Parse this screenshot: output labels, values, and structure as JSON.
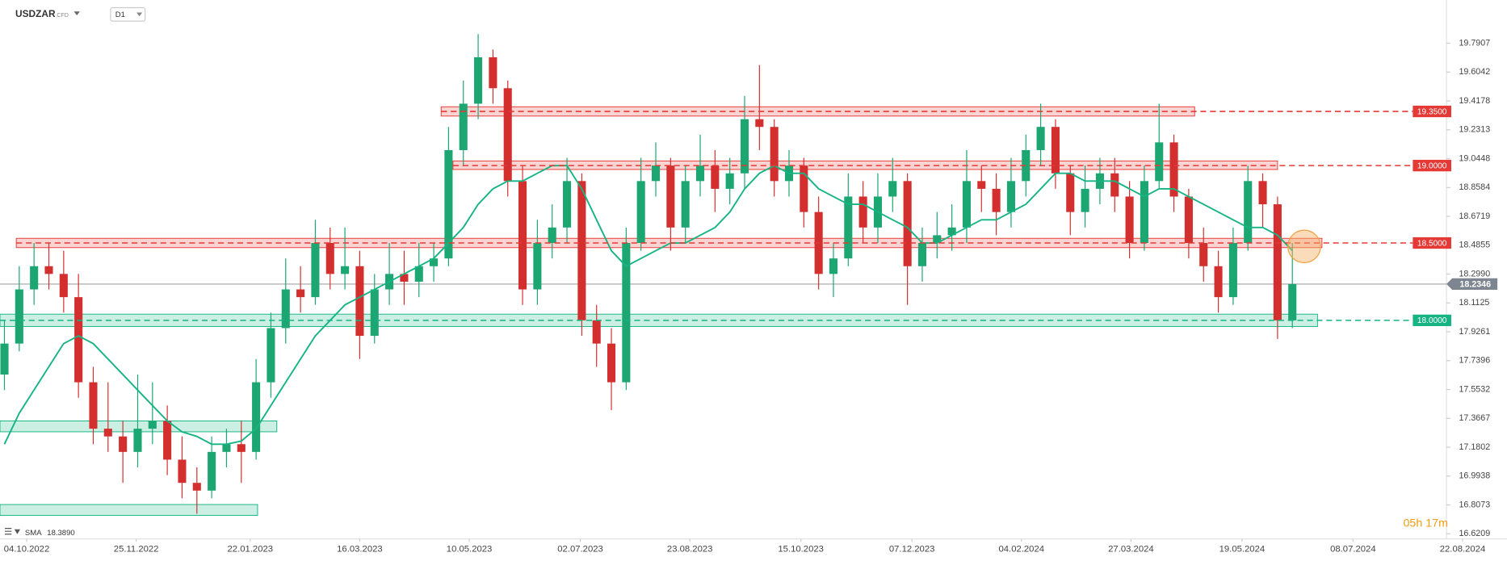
{
  "chart_data": {
    "type": "candlestick",
    "symbol": "USDZAR",
    "instrument": "CFD",
    "interval": "D1",
    "timer": "05h 17m",
    "up_color": "#1ba672",
    "down_color": "#d32f2f",
    "xlim": [
      -0.3,
      101.5
    ],
    "ylim": [
      16.6,
      20.07
    ],
    "xticks": [
      {
        "value": 1.5,
        "label": "04.10.2022"
      },
      {
        "value": 8.9,
        "label": "25.11.2022"
      },
      {
        "value": 16.6,
        "label": "22.01.2023"
      },
      {
        "value": 24.0,
        "label": "16.03.2023"
      },
      {
        "value": 31.4,
        "label": "10.05.2023"
      },
      {
        "value": 38.9,
        "label": "02.07.2023"
      },
      {
        "value": 46.3,
        "label": "23.08.2023"
      },
      {
        "value": 53.8,
        "label": "15.10.2023"
      },
      {
        "value": 61.3,
        "label": "07.12.2023"
      },
      {
        "value": 68.7,
        "label": "04.02.2024"
      },
      {
        "value": 76.1,
        "label": "27.03.2024"
      },
      {
        "value": 83.6,
        "label": "19.05.2024"
      },
      {
        "value": 91.1,
        "label": "08.07.2024"
      },
      {
        "value": 98.5,
        "label": "22.08.2024"
      }
    ],
    "yticks": [
      19.7907,
      19.6042,
      19.4178,
      19.2313,
      19.0448,
      18.8584,
      18.6719,
      18.4855,
      {
        "value": 18.299,
        "label": "18.2990"
      },
      18.1125,
      17.9261,
      17.7396,
      17.5532,
      17.3667,
      17.1802,
      16.9938,
      16.8073,
      16.6209
    ],
    "open": [
      17.65,
      17.85,
      18.2,
      18.35,
      18.3,
      18.15,
      17.6,
      17.3,
      17.25,
      17.15,
      17.3,
      17.35,
      17.1,
      16.95,
      16.9,
      17.15,
      17.2,
      17.15,
      17.6,
      17.95,
      18.2,
      18.15,
      18.5,
      18.3,
      18.35,
      17.9,
      18.2,
      18.3,
      18.25,
      18.35,
      18.4,
      19.1,
      19.4,
      19.7,
      19.5,
      18.9,
      18.2,
      18.5,
      18.6,
      18.9,
      18.0,
      17.85,
      17.6,
      18.5,
      18.9,
      19.0,
      18.6,
      18.9,
      19.0,
      18.85,
      18.95,
      19.3,
      19.25,
      18.9,
      19.0,
      18.7,
      18.3,
      18.4,
      18.8,
      18.6,
      18.8,
      18.9,
      18.35,
      18.5,
      18.55,
      18.6,
      18.9,
      18.85,
      18.7,
      18.9,
      19.1,
      19.25,
      18.95,
      18.7,
      18.85,
      18.95,
      18.8,
      18.5,
      18.9,
      19.15,
      18.8,
      18.5,
      18.35,
      18.15,
      18.5,
      18.9,
      18.75,
      18.0
    ],
    "high": [
      18.0,
      18.35,
      18.5,
      18.5,
      18.45,
      18.3,
      17.7,
      17.6,
      17.35,
      17.65,
      17.6,
      17.45,
      17.25,
      17.05,
      17.25,
      17.3,
      17.35,
      17.75,
      18.05,
      18.4,
      18.35,
      18.65,
      18.6,
      18.6,
      18.45,
      18.3,
      18.5,
      18.45,
      18.5,
      18.5,
      19.25,
      19.55,
      19.85,
      19.75,
      19.55,
      19.0,
      18.65,
      18.75,
      19.05,
      18.95,
      18.1,
      17.95,
      18.6,
      19.05,
      19.15,
      19.05,
      19.0,
      19.2,
      19.1,
      19.05,
      19.45,
      19.65,
      19.3,
      19.1,
      19.05,
      18.8,
      18.5,
      18.95,
      18.9,
      18.95,
      19.05,
      18.95,
      18.6,
      18.7,
      18.75,
      19.1,
      19.0,
      18.95,
      19.05,
      19.2,
      19.4,
      19.3,
      19.0,
      19.0,
      19.05,
      19.05,
      18.9,
      19.0,
      19.4,
      19.2,
      18.85,
      18.6,
      18.45,
      18.6,
      19.0,
      18.95,
      18.8,
      18.5
    ],
    "low": [
      17.55,
      17.8,
      18.1,
      18.2,
      18.05,
      17.5,
      17.2,
      17.15,
      16.95,
      17.05,
      17.2,
      17.0,
      16.85,
      16.75,
      16.85,
      17.05,
      16.95,
      17.1,
      17.5,
      17.85,
      18.05,
      18.1,
      18.2,
      18.2,
      17.75,
      17.85,
      18.1,
      18.1,
      18.15,
      18.25,
      18.35,
      19.0,
      19.3,
      19.4,
      18.8,
      18.1,
      18.1,
      18.4,
      18.5,
      17.9,
      17.7,
      17.42,
      17.55,
      18.45,
      18.8,
      18.45,
      18.5,
      18.8,
      18.7,
      18.75,
      18.85,
      19.1,
      18.8,
      18.8,
      18.6,
      18.2,
      18.15,
      18.35,
      18.5,
      18.5,
      18.7,
      18.1,
      18.25,
      18.4,
      18.45,
      18.5,
      18.7,
      18.55,
      18.6,
      18.8,
      19.0,
      18.85,
      18.55,
      18.6,
      18.75,
      18.7,
      18.4,
      18.45,
      18.85,
      18.7,
      18.4,
      18.25,
      18.05,
      18.1,
      18.45,
      18.6,
      17.88,
      17.95
    ],
    "close": [
      17.85,
      18.2,
      18.35,
      18.3,
      18.15,
      17.6,
      17.3,
      17.25,
      17.15,
      17.3,
      17.35,
      17.1,
      16.95,
      16.9,
      17.15,
      17.2,
      17.15,
      17.6,
      17.95,
      18.2,
      18.15,
      18.5,
      18.3,
      18.35,
      17.9,
      18.2,
      18.3,
      18.25,
      18.35,
      18.4,
      19.1,
      19.4,
      19.7,
      19.5,
      18.9,
      18.2,
      18.5,
      18.6,
      18.9,
      18.0,
      17.85,
      17.6,
      18.5,
      18.9,
      19.0,
      18.6,
      18.9,
      19.0,
      18.85,
      18.95,
      19.3,
      19.25,
      18.9,
      19.0,
      18.7,
      18.3,
      18.4,
      18.8,
      18.6,
      18.8,
      18.9,
      18.35,
      18.5,
      18.55,
      18.6,
      18.9,
      18.85,
      18.7,
      18.9,
      19.1,
      19.25,
      18.95,
      18.7,
      18.85,
      18.95,
      18.8,
      18.5,
      18.9,
      19.15,
      18.8,
      18.5,
      18.35,
      18.15,
      18.5,
      18.9,
      18.75,
      18.0,
      18.2346
    ],
    "sma": {
      "name": "SMA",
      "color": "#16b483",
      "last": {
        "value": 18.389,
        "label": "18.3890"
      },
      "values": [
        17.2,
        17.4,
        17.55,
        17.7,
        17.85,
        17.9,
        17.85,
        17.75,
        17.65,
        17.55,
        17.45,
        17.35,
        17.28,
        17.25,
        17.2,
        17.2,
        17.22,
        17.3,
        17.45,
        17.6,
        17.75,
        17.9,
        18.0,
        18.1,
        18.15,
        18.2,
        18.25,
        18.3,
        18.35,
        18.4,
        18.5,
        18.6,
        18.75,
        18.85,
        18.9,
        18.9,
        18.95,
        19.0,
        19.0,
        18.85,
        18.65,
        18.45,
        18.35,
        18.4,
        18.45,
        18.5,
        18.5,
        18.55,
        18.6,
        18.7,
        18.85,
        18.95,
        19.0,
        18.95,
        18.95,
        18.85,
        18.8,
        18.75,
        18.75,
        18.7,
        18.65,
        18.6,
        18.5,
        18.5,
        18.55,
        18.6,
        18.65,
        18.65,
        18.7,
        18.75,
        18.85,
        18.95,
        18.95,
        18.9,
        18.9,
        18.9,
        18.85,
        18.8,
        18.85,
        18.85,
        18.8,
        18.75,
        18.7,
        18.65,
        18.6,
        18.6,
        18.55,
        18.45
      ]
    },
    "last_price": 18.2346,
    "zones": [
      {
        "from": 29.5,
        "to": 80.4,
        "low": 19.32,
        "high": 19.38,
        "color": "#e53935"
      },
      {
        "from": 30.3,
        "to": 86.0,
        "low": 18.975,
        "high": 19.03,
        "color": "#e53935"
      },
      {
        "from": 0.8,
        "to": 89.0,
        "low": 18.47,
        "high": 18.53,
        "color": "#e53935"
      },
      {
        "from": -0.3,
        "to": 88.7,
        "low": 17.96,
        "high": 18.04,
        "color": "#16b483"
      },
      {
        "from": -0.3,
        "to": 18.4,
        "low": 17.28,
        "high": 17.35,
        "color": "#16b483"
      },
      {
        "from": -0.3,
        "to": 17.1,
        "low": 16.74,
        "high": 16.81,
        "color": "#16b483"
      }
    ],
    "levels": [
      {
        "value": 19.35,
        "label": "19.3500",
        "color": "#e53935"
      },
      {
        "value": 19.0,
        "label": "19.0000",
        "color": "#e53935"
      },
      {
        "value": 18.5,
        "label": "18.5000",
        "color": "#e53935"
      },
      {
        "value": 18.0,
        "label": "18.0000",
        "color": "#16b483"
      }
    ]
  }
}
